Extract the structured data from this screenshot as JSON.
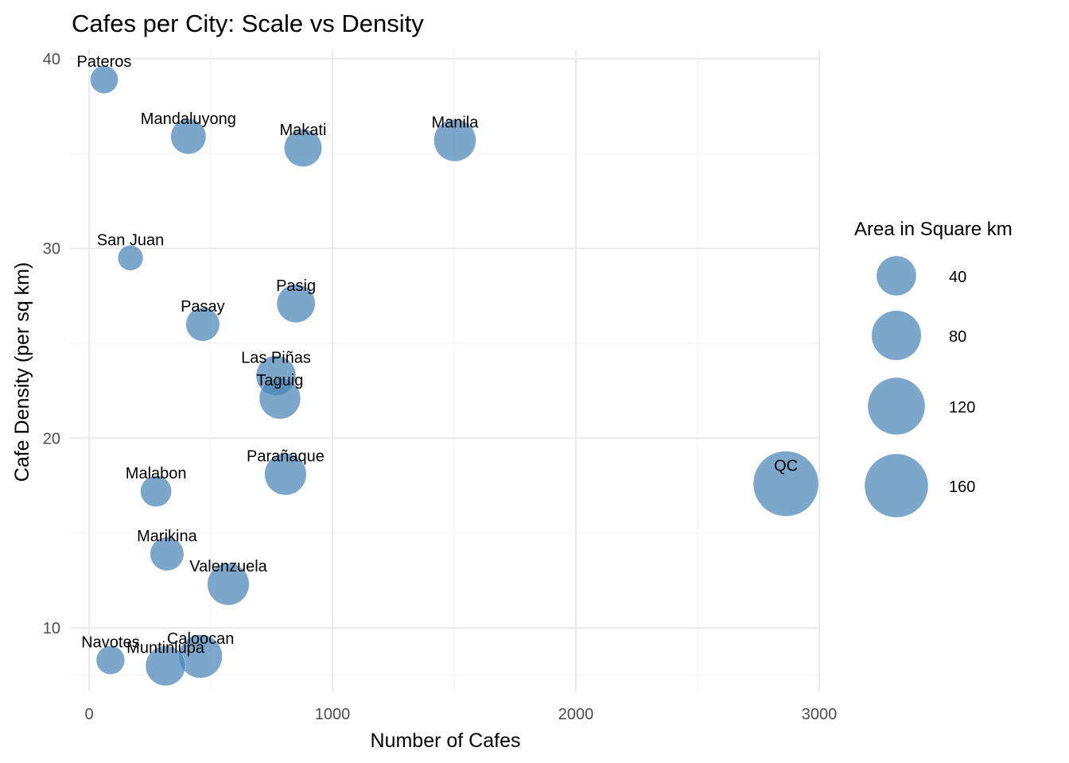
{
  "chart_data": {
    "type": "scatter",
    "title": "Cafes per City: Scale vs Density",
    "xlabel": "Number of Cafes",
    "ylabel": "Cafe Density (per sq km)",
    "xlim": [
      -20,
      3000
    ],
    "ylim": [
      7,
      41.2
    ],
    "x_ticks": [
      0,
      1000,
      2000,
      3000
    ],
    "x_tick_labels": [
      "0",
      "1000",
      "2000",
      "3000"
    ],
    "y_ticks": [
      10,
      20,
      30,
      40
    ],
    "y_tick_labels": [
      "10",
      "20",
      "30",
      "40"
    ],
    "grid": true,
    "point_color": "#4682b4",
    "legend": {
      "title": "Area in Square km",
      "position": "right",
      "breaks": [
        40,
        80,
        120,
        160
      ],
      "labels": [
        "40",
        "80",
        "120",
        "160"
      ]
    },
    "points": [
      {
        "label": "Pateros",
        "x": 62,
        "y": 38.9,
        "size": 10
      },
      {
        "label": "Mandaluyong",
        "x": 408,
        "y": 35.9,
        "size": 26
      },
      {
        "label": "Makati",
        "x": 879,
        "y": 35.3,
        "size": 33
      },
      {
        "label": "Manila",
        "x": 1503,
        "y": 35.7,
        "size": 48
      },
      {
        "label": "San Juan",
        "x": 170,
        "y": 29.5,
        "size": 6
      },
      {
        "label": "Pasig",
        "x": 850,
        "y": 27.1,
        "size": 35
      },
      {
        "label": "Pasay",
        "x": 467,
        "y": 26.0,
        "size": 22
      },
      {
        "label": "Las Piñas",
        "x": 768,
        "y": 23.3,
        "size": 40
      },
      {
        "label": "Taguig",
        "x": 784,
        "y": 22.1,
        "size": 45
      },
      {
        "label": "Parañaque",
        "x": 807,
        "y": 18.1,
        "size": 47
      },
      {
        "label": "Malabon",
        "x": 275,
        "y": 17.2,
        "size": 16
      },
      {
        "label": "QC",
        "x": 2863,
        "y": 17.6,
        "size": 171
      },
      {
        "label": "Marikina",
        "x": 320,
        "y": 13.9,
        "size": 22
      },
      {
        "label": "Valenzuela",
        "x": 572,
        "y": 12.3,
        "size": 47
      },
      {
        "label": "Navotes",
        "x": 88,
        "y": 8.3,
        "size": 11
      },
      {
        "label": "Caloocan",
        "x": 458,
        "y": 8.5,
        "size": 53
      },
      {
        "label": "Muntinlupa",
        "x": 314,
        "y": 8.0,
        "size": 40
      }
    ]
  }
}
